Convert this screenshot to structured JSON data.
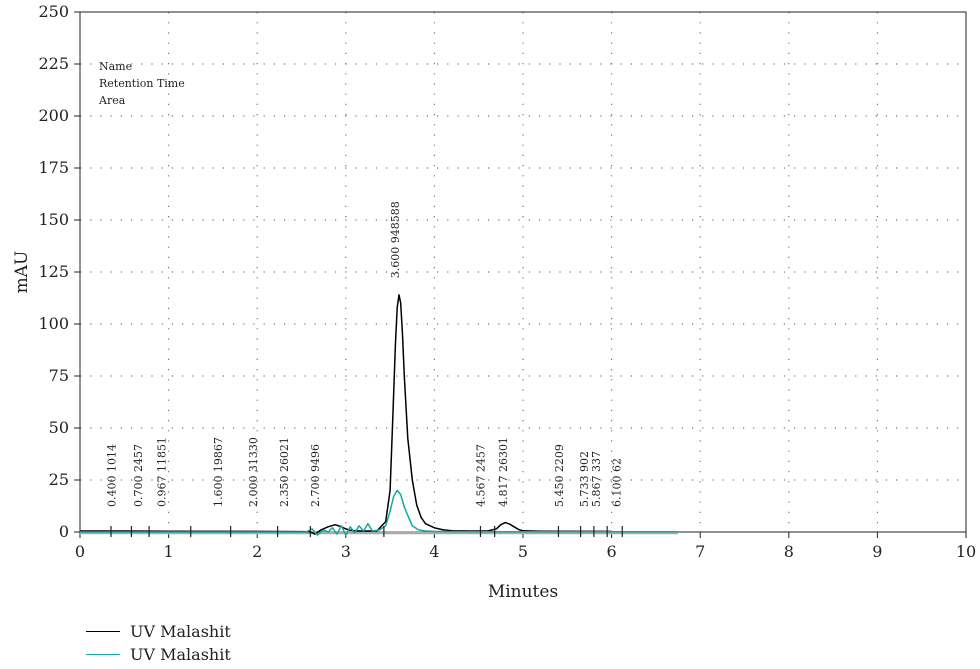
{
  "chart_data": {
    "type": "line",
    "xlabel": "Minutes",
    "ylabel": "mAU",
    "xlim": [
      0,
      10
    ],
    "ylim": [
      0,
      250
    ],
    "x_ticks": [
      "0",
      "1",
      "2",
      "3",
      "4",
      "5",
      "6",
      "7",
      "8",
      "9",
      "10"
    ],
    "y_ticks": [
      "0",
      "25",
      "50",
      "75",
      "100",
      "125",
      "150",
      "175",
      "200",
      "225",
      "250"
    ],
    "grid": "dotted",
    "info_labels": [
      "Name",
      "Retention Time",
      "Area"
    ],
    "series": [
      {
        "name": "UV Malashit",
        "color": "#000000",
        "x": [
          0,
          0.4,
          1.0,
          2.0,
          2.5,
          2.6,
          2.65,
          2.72,
          2.8,
          2.88,
          2.95,
          3.0,
          3.05,
          3.15,
          3.25,
          3.35,
          3.45,
          3.5,
          3.53,
          3.56,
          3.58,
          3.6,
          3.62,
          3.64,
          3.66,
          3.7,
          3.75,
          3.8,
          3.85,
          3.9,
          4.0,
          4.1,
          4.2,
          4.4,
          4.6,
          4.7,
          4.75,
          4.8,
          4.85,
          4.9,
          4.95,
          5.0,
          5.2,
          6.0
        ],
        "y": [
          0.5,
          0.5,
          0.4,
          0.3,
          0.2,
          0.1,
          -1,
          1,
          2.5,
          3.5,
          2.5,
          1.5,
          0.8,
          0.5,
          0.5,
          0.5,
          5,
          20,
          55,
          90,
          108,
          114,
          110,
          95,
          75,
          45,
          25,
          13,
          7,
          4,
          2,
          1,
          0.6,
          0.5,
          0.5,
          1.5,
          3.5,
          4.5,
          3.8,
          2.5,
          1.2,
          0.6,
          0.4,
          0.3
        ]
      },
      {
        "name": "UV Malashit",
        "color": "#17a7a0",
        "x": [
          0,
          1.0,
          2.0,
          2.55,
          2.62,
          2.68,
          2.75,
          2.8,
          2.85,
          2.9,
          2.95,
          3.0,
          3.05,
          3.1,
          3.15,
          3.2,
          3.25,
          3.3,
          3.38,
          3.45,
          3.5,
          3.54,
          3.58,
          3.62,
          3.66,
          3.7,
          3.75,
          3.82,
          3.9,
          4.0,
          4.2,
          4.5,
          5.0,
          5.5,
          6.0,
          6.5,
          6.75
        ],
        "y": [
          0,
          0,
          0,
          0,
          1.5,
          -1.5,
          1,
          0,
          2,
          -1,
          3,
          -1.5,
          2.5,
          -0.5,
          3,
          0.5,
          4,
          0.5,
          1,
          3,
          10,
          17,
          20,
          18,
          12,
          8,
          3,
          1,
          0.5,
          0.3,
          0.2,
          0.1,
          0.1,
          0.1,
          0.1,
          0.1,
          0.1
        ]
      }
    ],
    "baseline_color": "#aaaaaa",
    "peak_marks": [
      0.35,
      0.58,
      0.78,
      1.25,
      1.7,
      2.23,
      2.6,
      3.43,
      4.52,
      4.68,
      5.4,
      5.65,
      5.8,
      5.95,
      6.12
    ],
    "peak_labels": [
      {
        "x": 0.4,
        "text": "0.400  1014"
      },
      {
        "x": 0.7,
        "text": "0.700  2457"
      },
      {
        "x": 0.967,
        "text": "0.967  11851"
      },
      {
        "x": 1.6,
        "text": "1.600  19867"
      },
      {
        "x": 2.0,
        "text": "2.000  31330"
      },
      {
        "x": 2.35,
        "text": "2.350  26021"
      },
      {
        "x": 2.7,
        "text": "2.700  9496"
      },
      {
        "x": 4.567,
        "text": "4.567  2457"
      },
      {
        "x": 4.817,
        "text": "4.817  26301"
      },
      {
        "x": 5.45,
        "text": "5.450  2209"
      },
      {
        "x": 5.733,
        "text": "5.733  902"
      },
      {
        "x": 5.867,
        "text": "5.867  337"
      },
      {
        "x": 6.1,
        "text": "6.100  62"
      }
    ],
    "main_peak_label": {
      "x": 3.6,
      "y": 122,
      "text": "3.600  948588"
    }
  },
  "legend": {
    "items": [
      {
        "label": "UV Malashit",
        "color": "#000000"
      },
      {
        "label": "UV Malashit",
        "color": "#17a7a0"
      }
    ]
  }
}
